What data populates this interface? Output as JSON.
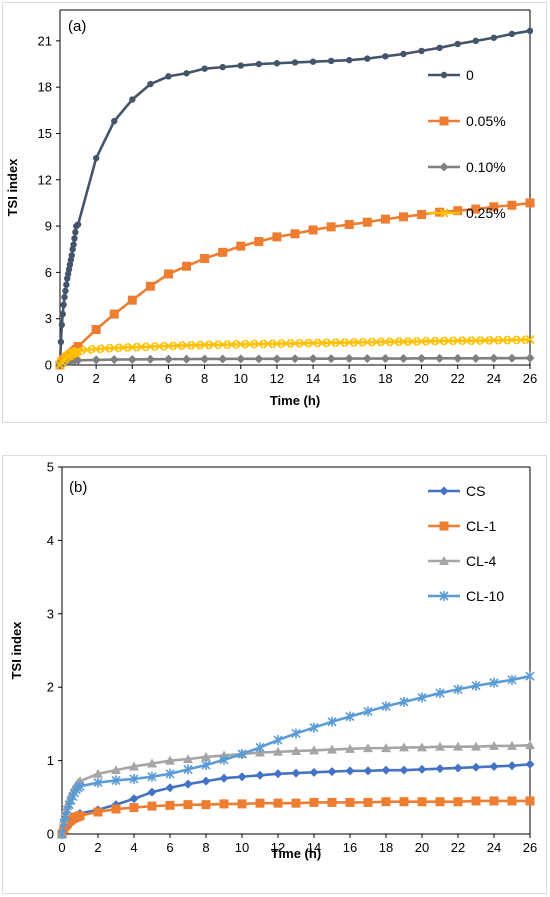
{
  "chart_data": [
    {
      "type": "line",
      "panel_label": "(a)",
      "xlabel": "Time (h)",
      "ylabel": "TSI index",
      "xlim": [
        0,
        26
      ],
      "ylim": [
        0,
        23
      ],
      "xticks": [
        0,
        2,
        4,
        6,
        8,
        10,
        12,
        14,
        16,
        18,
        20,
        22,
        24,
        26
      ],
      "yticks": [
        0,
        3,
        6,
        9,
        12,
        15,
        18,
        21
      ],
      "legend_position": "right",
      "grid": false,
      "series": [
        {
          "name": "0",
          "color": "#44546A",
          "marker": "circle",
          "x": [
            0,
            0.05,
            0.1,
            0.15,
            0.2,
            0.25,
            0.3,
            0.35,
            0.4,
            0.45,
            0.5,
            0.55,
            0.6,
            0.65,
            0.7,
            0.75,
            0.8,
            0.85,
            0.9,
            1,
            2,
            3,
            4,
            5,
            6,
            7,
            8,
            9,
            10,
            11,
            12,
            13,
            14,
            15,
            16,
            17,
            18,
            19,
            20,
            21,
            22,
            23,
            24,
            25,
            26
          ],
          "y": [
            0,
            1.5,
            2.6,
            3.3,
            3.9,
            4.4,
            4.8,
            5.2,
            5.6,
            5.9,
            6.2,
            6.5,
            6.8,
            7.1,
            7.5,
            7.8,
            8.2,
            8.6,
            9.0,
            9.1,
            13.4,
            15.8,
            17.2,
            18.2,
            18.7,
            18.9,
            19.2,
            19.3,
            19.4,
            19.5,
            19.55,
            19.6,
            19.65,
            19.7,
            19.75,
            19.85,
            20.0,
            20.15,
            20.35,
            20.55,
            20.8,
            21.0,
            21.2,
            21.45,
            21.65
          ]
        },
        {
          "name": "0.05%",
          "color": "#ED7D31",
          "marker": "square",
          "x": [
            0,
            0.1,
            0.2,
            0.3,
            0.4,
            0.5,
            0.6,
            0.7,
            0.8,
            0.9,
            1,
            2,
            3,
            4,
            5,
            6,
            7,
            8,
            9,
            10,
            11,
            12,
            13,
            14,
            15,
            16,
            17,
            18,
            19,
            20,
            21,
            22,
            23,
            24,
            25,
            26
          ],
          "y": [
            0,
            0.2,
            0.3,
            0.4,
            0.5,
            0.6,
            0.7,
            0.8,
            0.9,
            1.0,
            1.2,
            2.3,
            3.3,
            4.2,
            5.1,
            5.9,
            6.4,
            6.9,
            7.3,
            7.7,
            8.0,
            8.3,
            8.5,
            8.75,
            8.95,
            9.1,
            9.25,
            9.45,
            9.6,
            9.75,
            9.9,
            10.0,
            10.1,
            10.25,
            10.35,
            10.5
          ]
        },
        {
          "name": "0.10%",
          "color": "#7F7F7F",
          "marker": "diamond",
          "x": [
            0,
            0.2,
            0.4,
            0.6,
            0.8,
            1,
            2,
            3,
            4,
            5,
            6,
            7,
            8,
            9,
            10,
            11,
            12,
            13,
            14,
            15,
            16,
            17,
            18,
            19,
            20,
            21,
            22,
            23,
            24,
            25,
            26
          ],
          "y": [
            0,
            0.15,
            0.2,
            0.25,
            0.3,
            0.3,
            0.33,
            0.35,
            0.36,
            0.37,
            0.38,
            0.38,
            0.39,
            0.39,
            0.4,
            0.4,
            0.4,
            0.41,
            0.41,
            0.41,
            0.42,
            0.42,
            0.42,
            0.42,
            0.43,
            0.43,
            0.43,
            0.43,
            0.44,
            0.44,
            0.45
          ]
        },
        {
          "name": "0.25%",
          "color": "#FFC000",
          "marker": "x",
          "x": [
            0,
            0.1,
            0.2,
            0.3,
            0.4,
            0.5,
            0.6,
            0.7,
            0.8,
            0.9,
            1,
            1.5,
            2,
            2.5,
            3,
            3.5,
            4,
            4.5,
            5,
            5.5,
            6,
            6.5,
            7,
            7.5,
            8,
            8.5,
            9,
            9.5,
            10,
            10.5,
            11,
            11.5,
            12,
            12.5,
            13,
            13.5,
            14,
            14.5,
            15,
            15.5,
            16,
            16.5,
            17,
            17.5,
            18,
            18.5,
            19,
            19.5,
            20,
            20.5,
            21,
            21.5,
            22,
            22.5,
            23,
            23.5,
            24,
            24.5,
            25,
            25.5,
            26
          ],
          "y": [
            0,
            0.2,
            0.35,
            0.45,
            0.55,
            0.6,
            0.7,
            0.75,
            0.8,
            0.85,
            0.9,
            0.98,
            1.03,
            1.07,
            1.1,
            1.13,
            1.15,
            1.17,
            1.19,
            1.21,
            1.23,
            1.25,
            1.27,
            1.28,
            1.3,
            1.31,
            1.32,
            1.33,
            1.34,
            1.35,
            1.36,
            1.37,
            1.38,
            1.39,
            1.4,
            1.41,
            1.42,
            1.43,
            1.44,
            1.45,
            1.46,
            1.47,
            1.48,
            1.49,
            1.5,
            1.5,
            1.51,
            1.52,
            1.53,
            1.54,
            1.55,
            1.56,
            1.57,
            1.57,
            1.58,
            1.59,
            1.6,
            1.61,
            1.62,
            1.63,
            1.65
          ]
        }
      ]
    },
    {
      "type": "line",
      "panel_label": "(b)",
      "xlabel": "Time (h)",
      "ylabel": "TSI index",
      "xlim": [
        0,
        26
      ],
      "ylim": [
        0,
        5
      ],
      "xticks": [
        0,
        2,
        4,
        6,
        8,
        10,
        12,
        14,
        16,
        18,
        20,
        22,
        24,
        26
      ],
      "yticks": [
        0,
        1,
        2,
        3,
        4,
        5
      ],
      "legend_position": "right",
      "grid": false,
      "series": [
        {
          "name": "CS",
          "color": "#4472C4",
          "marker": "diamond",
          "x": [
            0,
            0.1,
            0.2,
            0.3,
            0.4,
            0.5,
            0.6,
            0.7,
            0.8,
            0.9,
            1,
            2,
            3,
            4,
            5,
            6,
            7,
            8,
            9,
            10,
            11,
            12,
            13,
            14,
            15,
            16,
            17,
            18,
            19,
            20,
            21,
            22,
            23,
            24,
            25,
            26
          ],
          "y": [
            0,
            0.08,
            0.12,
            0.16,
            0.19,
            0.21,
            0.23,
            0.24,
            0.25,
            0.26,
            0.28,
            0.33,
            0.4,
            0.48,
            0.57,
            0.63,
            0.68,
            0.72,
            0.76,
            0.78,
            0.8,
            0.82,
            0.83,
            0.84,
            0.85,
            0.86,
            0.86,
            0.87,
            0.87,
            0.88,
            0.89,
            0.9,
            0.91,
            0.92,
            0.93,
            0.95
          ]
        },
        {
          "name": "CL-1",
          "color": "#ED7D31",
          "marker": "square",
          "x": [
            0,
            0.1,
            0.2,
            0.3,
            0.4,
            0.5,
            0.6,
            0.7,
            0.8,
            0.9,
            1,
            2,
            3,
            4,
            5,
            6,
            7,
            8,
            9,
            10,
            11,
            12,
            13,
            14,
            15,
            16,
            17,
            18,
            19,
            20,
            21,
            22,
            23,
            24,
            25,
            26
          ],
          "y": [
            0,
            0.07,
            0.11,
            0.14,
            0.17,
            0.19,
            0.21,
            0.22,
            0.23,
            0.24,
            0.25,
            0.3,
            0.34,
            0.36,
            0.38,
            0.39,
            0.4,
            0.4,
            0.41,
            0.41,
            0.42,
            0.42,
            0.42,
            0.43,
            0.43,
            0.43,
            0.43,
            0.44,
            0.44,
            0.44,
            0.44,
            0.44,
            0.45,
            0.45,
            0.45,
            0.45
          ]
        },
        {
          "name": "CL-4",
          "color": "#A5A5A5",
          "marker": "triangle",
          "x": [
            0,
            0.1,
            0.2,
            0.3,
            0.4,
            0.5,
            0.6,
            0.7,
            0.8,
            0.9,
            1,
            2,
            3,
            4,
            5,
            6,
            7,
            8,
            9,
            10,
            11,
            12,
            13,
            14,
            15,
            16,
            17,
            18,
            19,
            20,
            21,
            22,
            23,
            24,
            25,
            26
          ],
          "y": [
            0,
            0.2,
            0.3,
            0.38,
            0.45,
            0.52,
            0.58,
            0.63,
            0.67,
            0.7,
            0.72,
            0.82,
            0.87,
            0.92,
            0.96,
            1.0,
            1.02,
            1.05,
            1.07,
            1.09,
            1.11,
            1.12,
            1.13,
            1.14,
            1.15,
            1.16,
            1.17,
            1.17,
            1.18,
            1.18,
            1.19,
            1.19,
            1.19,
            1.2,
            1.2,
            1.21
          ]
        },
        {
          "name": "CL-10",
          "color": "#5B9BD5",
          "marker": "star",
          "x": [
            0,
            0.1,
            0.2,
            0.3,
            0.4,
            0.5,
            0.6,
            0.7,
            0.8,
            0.9,
            1,
            2,
            3,
            4,
            5,
            6,
            7,
            8,
            9,
            10,
            11,
            12,
            13,
            14,
            15,
            16,
            17,
            18,
            19,
            20,
            21,
            22,
            23,
            24,
            25,
            26
          ],
          "y": [
            0,
            0.15,
            0.25,
            0.33,
            0.4,
            0.46,
            0.51,
            0.56,
            0.6,
            0.63,
            0.65,
            0.7,
            0.73,
            0.75,
            0.78,
            0.82,
            0.88,
            0.94,
            1.01,
            1.09,
            1.18,
            1.28,
            1.37,
            1.45,
            1.53,
            1.6,
            1.67,
            1.74,
            1.8,
            1.86,
            1.92,
            1.97,
            2.02,
            2.06,
            2.1,
            2.15
          ]
        }
      ]
    }
  ]
}
